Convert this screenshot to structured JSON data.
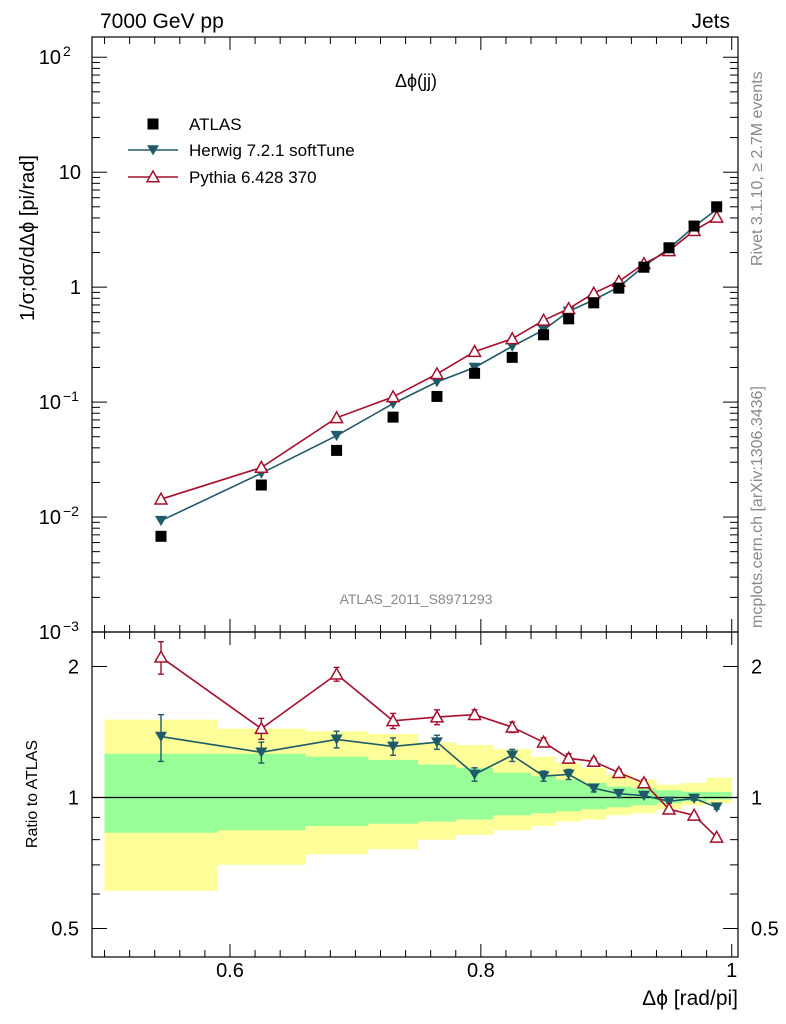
{
  "header": {
    "left": "7000 GeV pp",
    "right": "Jets"
  },
  "side_labels": {
    "rivet": "Rivet 3.1.10, ≥ 2.7M events",
    "mcplots": "mcplots.cern.ch [arXiv:1306.3436]"
  },
  "chart_data": [
    {
      "type": "scatter",
      "title": "Δϕ(jj)",
      "ylabel": "1/σ;dσ/dΔϕ [pi/rad]",
      "xlabel": "Δϕ [rad/pi]",
      "yscale": "log",
      "xlim": [
        0.49,
        1.005
      ],
      "ylim": [
        0.001,
        150
      ],
      "yticks": [
        {
          "value": 0.001,
          "label_base": "10",
          "label_exp": "−3"
        },
        {
          "value": 0.01,
          "label_base": "10",
          "label_exp": "−2"
        },
        {
          "value": 0.1,
          "label_base": "10",
          "label_exp": "−1"
        },
        {
          "value": 1,
          "label_base": "1",
          "label_exp": ""
        },
        {
          "value": 10,
          "label_base": "10",
          "label_exp": ""
        },
        {
          "value": 100,
          "label_base": "10",
          "label_exp": "2"
        }
      ],
      "watermark": "ATLAS_2011_S8971293",
      "x": [
        0.545,
        0.625,
        0.685,
        0.73,
        0.765,
        0.795,
        0.825,
        0.85,
        0.87,
        0.89,
        0.91,
        0.93,
        0.95,
        0.97,
        0.988
      ],
      "series": [
        {
          "name": "ATLAS",
          "color": "#000000",
          "marker": "square",
          "values": [
            0.0068,
            0.019,
            0.038,
            0.074,
            0.112,
            0.178,
            0.245,
            0.385,
            0.53,
            0.73,
            0.98,
            1.49,
            2.2,
            3.4,
            5.0
          ]
        },
        {
          "name": "Herwig 7.2.1 softTune",
          "color": "#1e5a68",
          "marker": "triangle-down",
          "values": [
            0.0093,
            0.024,
            0.051,
            0.097,
            0.15,
            0.2,
            0.305,
            0.425,
            0.615,
            0.775,
            1.0,
            1.52,
            2.17,
            3.36,
            4.75
          ]
        },
        {
          "name": "Pythia 6.428 370",
          "color": "#a50f2d",
          "marker": "triangle-open",
          "values": [
            0.0143,
            0.027,
            0.073,
            0.111,
            0.176,
            0.275,
            0.355,
            0.515,
            0.65,
            0.885,
            1.12,
            1.6,
            2.07,
            3.1,
            4.05
          ]
        }
      ]
    },
    {
      "type": "line",
      "ylabel": "Ratio to ATLAS",
      "yscale": "log",
      "ylim": [
        0.43,
        2.4
      ],
      "yticks": [
        {
          "value": 0.5,
          "label": "0.5"
        },
        {
          "value": 1,
          "label": "1"
        },
        {
          "value": 2,
          "label": "2"
        }
      ],
      "xticks": [
        {
          "value": 0.6,
          "label": "0.6"
        },
        {
          "value": 0.8,
          "label": "0.8"
        },
        {
          "value": 1.0,
          "label": "1"
        }
      ],
      "x": [
        0.545,
        0.625,
        0.685,
        0.73,
        0.765,
        0.795,
        0.825,
        0.85,
        0.87,
        0.89,
        0.91,
        0.93,
        0.95,
        0.97,
        0.988
      ],
      "bands": {
        "edges": [
          0.5,
          0.59,
          0.66,
          0.71,
          0.75,
          0.78,
          0.81,
          0.84,
          0.86,
          0.88,
          0.9,
          0.92,
          0.94,
          0.96,
          0.98,
          1.0
        ],
        "green": [
          [
            0.83,
            1.26
          ],
          [
            0.84,
            1.26
          ],
          [
            0.86,
            1.24
          ],
          [
            0.87,
            1.22
          ],
          [
            0.88,
            1.19
          ],
          [
            0.89,
            1.17
          ],
          [
            0.91,
            1.14
          ],
          [
            0.92,
            1.12
          ],
          [
            0.93,
            1.1
          ],
          [
            0.94,
            1.08
          ],
          [
            0.95,
            1.06
          ],
          [
            0.96,
            1.05
          ],
          [
            0.97,
            1.04
          ],
          [
            0.98,
            1.03
          ],
          [
            0.99,
            1.03
          ]
        ],
        "yellow": [
          [
            0.61,
            1.51
          ],
          [
            0.7,
            1.44
          ],
          [
            0.74,
            1.42
          ],
          [
            0.76,
            1.4
          ],
          [
            0.8,
            1.34
          ],
          [
            0.82,
            1.32
          ],
          [
            0.84,
            1.29
          ],
          [
            0.86,
            1.24
          ],
          [
            0.88,
            1.2
          ],
          [
            0.89,
            1.17
          ],
          [
            0.91,
            1.13
          ],
          [
            0.92,
            1.1
          ],
          [
            0.94,
            1.07
          ],
          [
            0.96,
            1.08
          ],
          [
            0.97,
            1.11
          ]
        ],
        "green_color": "#99ff99",
        "yellow_color": "#ffff99"
      },
      "series": [
        {
          "name": "Herwig 7.2.1 softTune",
          "color": "#1e5a68",
          "marker": "triangle-down",
          "values": [
            1.38,
            1.27,
            1.36,
            1.31,
            1.34,
            1.13,
            1.25,
            1.12,
            1.13,
            1.05,
            1.02,
            1.01,
            0.98,
            0.995,
            0.95
          ],
          "errors": [
            0.17,
            0.07,
            0.06,
            0.06,
            0.05,
            0.04,
            0.04,
            0.03,
            0.03,
            0.02,
            0.02,
            0.01,
            0.01,
            0.01,
            0.01
          ]
        },
        {
          "name": "Pythia 6.428 370",
          "color": "#a50f2d",
          "marker": "triangle-open",
          "values": [
            2.1,
            1.44,
            1.92,
            1.5,
            1.53,
            1.55,
            1.45,
            1.34,
            1.23,
            1.21,
            1.14,
            1.08,
            0.94,
            0.91,
            0.81
          ],
          "errors": [
            0.18,
            0.08,
            0.07,
            0.06,
            0.06,
            0.04,
            0.04,
            0.03,
            0.03,
            0.02,
            0.02,
            0.02,
            0.01,
            0.01,
            0.01
          ]
        }
      ]
    }
  ]
}
